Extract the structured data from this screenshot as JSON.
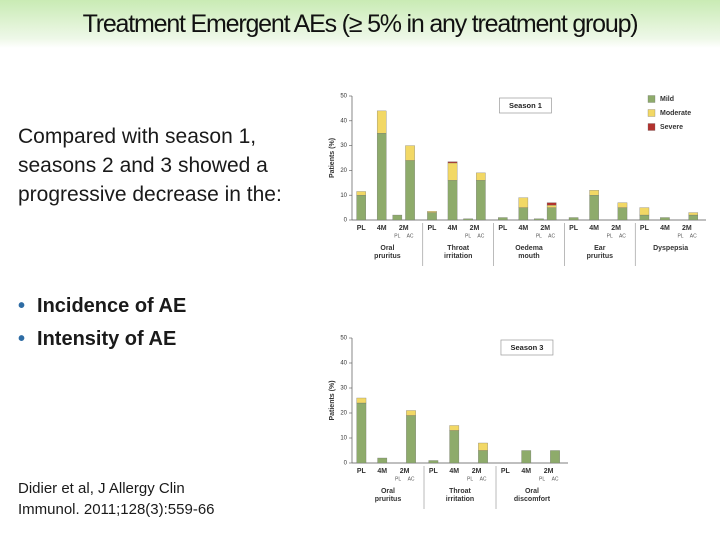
{
  "title": "Treatment Emergent AEs (≥ 5% in any treatment group)",
  "body": {
    "intro": "Compared with season 1, seasons 2 and 3 showed a progressive decrease in the:",
    "bullets": [
      "Incidence of AE",
      "Intensity of AE"
    ],
    "citation": "Didier et al, J Allergy Clin Immunol. 2011;128(3):559-66"
  },
  "chart_data": [
    {
      "type": "bar",
      "stacked": true,
      "title": "Season 1",
      "y_label": "Patients (%)",
      "ylim": [
        0,
        50
      ],
      "yticks": [
        0,
        10,
        20,
        30,
        40,
        50
      ],
      "bar_labels": [
        "PL",
        "4M",
        "2M"
      ],
      "sub_labels": [
        "PL",
        "AC"
      ],
      "categories": [
        [
          "Oral",
          "pruritus"
        ],
        [
          "Throat",
          "irritation"
        ],
        [
          "Oedema",
          "mouth"
        ],
        [
          "Ear",
          "pruritus"
        ],
        [
          "Dyspepsia"
        ]
      ],
      "legend": "top-right",
      "series": [
        {
          "name": "Mild",
          "color": "#8eab6b",
          "values": [
            [
              10,
              35,
              2,
              24
            ],
            [
              3,
              16,
              0.5,
              16
            ],
            [
              1,
              5,
              0.5,
              5
            ],
            [
              1,
              10,
              0,
              5
            ],
            [
              2,
              1,
              0,
              2
            ]
          ]
        },
        {
          "name": "Moderate",
          "color": "#f2d865",
          "values": [
            [
              1.5,
              9,
              0,
              6
            ],
            [
              0.5,
              7,
              0,
              3
            ],
            [
              0,
              4,
              0,
              1
            ],
            [
              0,
              2,
              0,
              2
            ],
            [
              3,
              0,
              0,
              1
            ]
          ]
        },
        {
          "name": "Severe",
          "color": "#b2322e",
          "values": [
            [
              0,
              0,
              0,
              0
            ],
            [
              0,
              0.5,
              0,
              0
            ],
            [
              0,
              0,
              0,
              1
            ],
            [
              0,
              0,
              0,
              0
            ],
            [
              0,
              0,
              0,
              0
            ]
          ]
        }
      ]
    },
    {
      "type": "bar",
      "stacked": true,
      "title": "Season 3",
      "y_label": "Patients (%)",
      "ylim": [
        0,
        50
      ],
      "yticks": [
        0,
        10,
        20,
        30,
        40,
        50
      ],
      "bar_labels": [
        "PL",
        "4M",
        "2M"
      ],
      "sub_labels": [
        "PL",
        "AC"
      ],
      "categories": [
        [
          "Oral",
          "pruritus"
        ],
        [
          "Throat",
          "irritation"
        ],
        [
          "Oral",
          "discomfort"
        ]
      ],
      "series": [
        {
          "color": "#8eab6b",
          "values": [
            [
              24,
              2,
              0,
              19
            ],
            [
              1,
              13,
              0,
              5
            ],
            [
              0,
              5,
              0,
              5
            ]
          ]
        },
        {
          "color": "#f2d865",
          "values": [
            [
              2,
              0,
              0,
              2
            ],
            [
              0,
              2,
              0,
              3
            ],
            [
              0,
              0,
              0,
              0
            ]
          ]
        },
        {
          "color": "#b2322e",
          "values": [
            [
              0,
              0,
              0,
              0
            ],
            [
              0,
              0,
              0,
              0
            ],
            [
              0,
              0,
              0,
              0
            ]
          ]
        }
      ]
    }
  ]
}
